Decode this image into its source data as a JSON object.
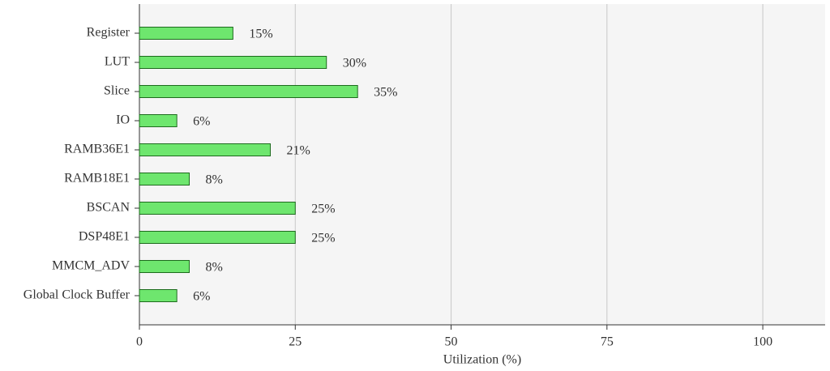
{
  "chart_data": {
    "type": "bar",
    "orientation": "horizontal",
    "x_label": "Utilization (%)",
    "categories": [
      "Register",
      "LUT",
      "Slice",
      "IO",
      "RAMB36E1",
      "RAMB18E1",
      "BSCAN",
      "DSP48E1",
      "MMCM_ADV",
      "Global Clock Buffer"
    ],
    "values": [
      15,
      30,
      35,
      6,
      21,
      8,
      25,
      25,
      8,
      6
    ],
    "value_labels": [
      "15%",
      "30%",
      "35%",
      "6%",
      "21%",
      "8%",
      "25%",
      "25%",
      "8%",
      "6%"
    ],
    "color": "#6ee66e",
    "xlim": [
      0,
      110
    ],
    "xticks": [
      0,
      25,
      50,
      75,
      100
    ],
    "grid": true
  }
}
